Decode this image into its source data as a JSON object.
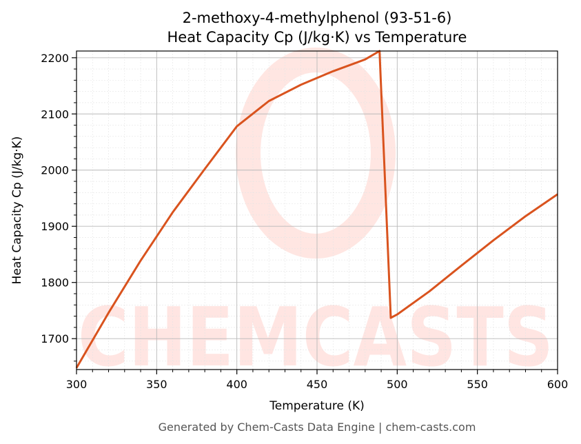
{
  "chart_data": {
    "type": "line",
    "title": "2-methoxy-4-methylphenol (93-51-6)",
    "subtitle": "Heat Capacity Cp (J/kg·K) vs Temperature",
    "xlabel": "Temperature (K)",
    "ylabel": "Heat Capacity Cp (J/kg·K)",
    "xlim": [
      300,
      600
    ],
    "ylim": [
      1645,
      2212
    ],
    "xticks": [
      300,
      350,
      400,
      450,
      500,
      550,
      600
    ],
    "yticks": [
      1700,
      1800,
      1900,
      2000,
      2100,
      2200
    ],
    "grid": true,
    "line_color": "#d9531e",
    "series": [
      {
        "x": [
          300,
          320,
          340,
          360,
          380,
          400,
          420,
          440,
          460,
          480,
          489,
          496,
          500,
          520,
          540,
          560,
          580,
          600
        ],
        "y": [
          1648,
          1746,
          1839,
          1925,
          2002,
          2078,
          2123,
          2152,
          2176,
          2197,
          2212,
          1737,
          1743,
          1784,
          1830,
          1875,
          1918,
          1957
        ]
      }
    ],
    "watermark": "CHEMCASTS"
  },
  "footer": "Generated by Chem-Casts Data Engine | chem-casts.com"
}
